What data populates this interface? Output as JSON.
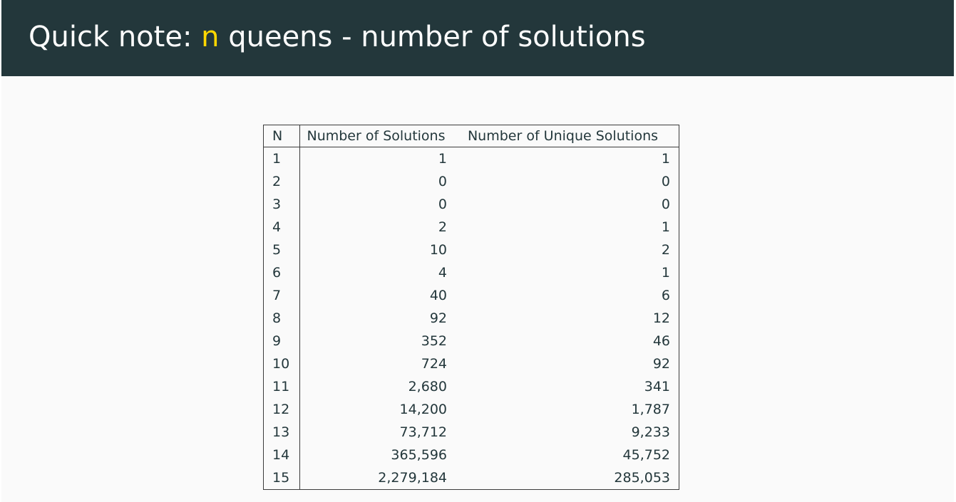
{
  "title": {
    "prefix": "Quick note: ",
    "highlight": "n",
    "suffix": " queens - number of solutions"
  },
  "colors": {
    "title_bar": "#23373b",
    "highlight": "#ffd700",
    "background": "#fafafa",
    "text": "#23373b"
  },
  "table": {
    "headers": [
      "N",
      "Number of Solutions",
      "Number of Unique Solutions"
    ],
    "rows": [
      [
        "1",
        "1",
        "1"
      ],
      [
        "2",
        "0",
        "0"
      ],
      [
        "3",
        "0",
        "0"
      ],
      [
        "4",
        "2",
        "1"
      ],
      [
        "5",
        "10",
        "2"
      ],
      [
        "6",
        "4",
        "1"
      ],
      [
        "7",
        "40",
        "6"
      ],
      [
        "8",
        "92",
        "12"
      ],
      [
        "9",
        "352",
        "46"
      ],
      [
        "10",
        "724",
        "92"
      ],
      [
        "11",
        "2,680",
        "341"
      ],
      [
        "12",
        "14,200",
        "1,787"
      ],
      [
        "13",
        "73,712",
        "9,233"
      ],
      [
        "14",
        "365,596",
        "45,752"
      ],
      [
        "15",
        "2,279,184",
        "285,053"
      ]
    ]
  }
}
